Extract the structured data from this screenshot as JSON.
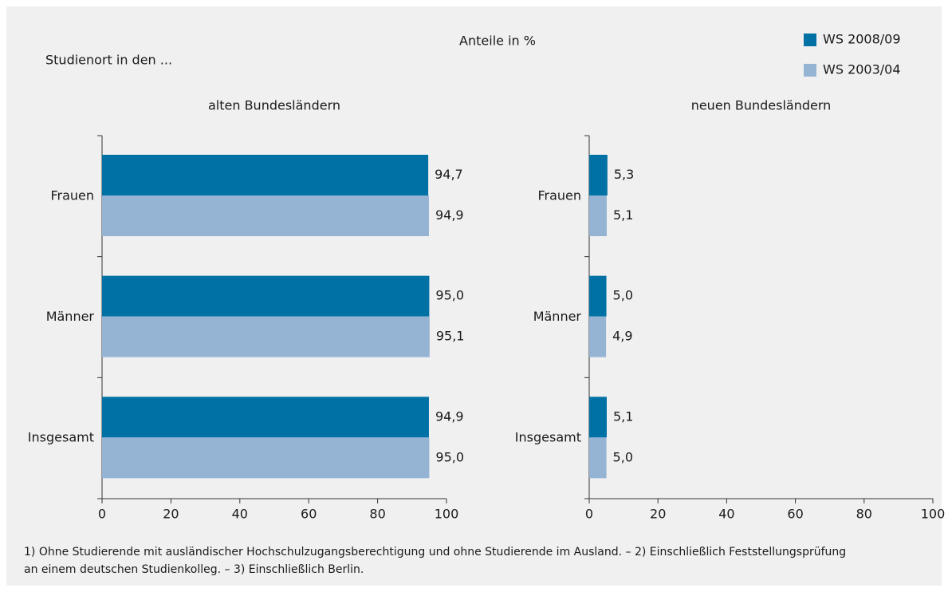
{
  "title": "Anteile in %",
  "axis_caption": "Studienort in den ...",
  "footnote": [
    "1) Ohne Studierende mit ausländischer Hochschulzugangsberechtigung und ohne Studierende im Ausland. – 2) Einschließlich Feststellungsprüfung",
    "an einem deutschen Studienkolleg. – 3) Einschließlich Berlin."
  ],
  "chart_data": [
    {
      "type": "bar",
      "orientation": "horizontal",
      "title": "alten Bundesländern",
      "categories": [
        "Frauen",
        "Männer",
        "Insgesamt"
      ],
      "series": [
        {
          "name": "WS 2008/09",
          "color": "#0071a4",
          "values": [
            94.7,
            95.0,
            94.9
          ],
          "value_labels": [
            "94,7",
            "95,0",
            "94,9"
          ]
        },
        {
          "name": "WS 2003/04",
          "color": "#95b4d3",
          "values": [
            94.9,
            95.1,
            95.0
          ],
          "value_labels": [
            "94,9",
            "95,1",
            "95,0"
          ]
        }
      ],
      "xlim": [
        0,
        100
      ],
      "xticks": [
        0,
        20,
        40,
        60,
        80,
        100
      ]
    },
    {
      "type": "bar",
      "orientation": "horizontal",
      "title": "neuen Bundesländern",
      "categories": [
        "Frauen",
        "Männer",
        "Insgesamt"
      ],
      "series": [
        {
          "name": "WS 2008/09",
          "color": "#0071a4",
          "values": [
            5.3,
            5.0,
            5.1
          ],
          "value_labels": [
            "5,3",
            "5,0",
            "5,1"
          ]
        },
        {
          "name": "WS 2003/04",
          "color": "#95b4d3",
          "values": [
            5.1,
            4.9,
            5.0
          ],
          "value_labels": [
            "5,1",
            "4,9",
            "5,0"
          ]
        }
      ],
      "xlim": [
        0,
        100
      ],
      "xticks": [
        0,
        20,
        40,
        60,
        80,
        100
      ]
    }
  ]
}
